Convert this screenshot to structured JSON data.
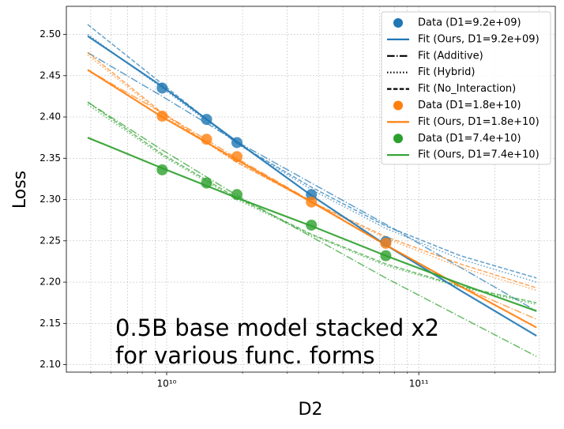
{
  "chart_data": {
    "type": "scatter_fit",
    "annotation": [
      "0.5B base model stacked x2",
      "for various func. forms"
    ],
    "x_label": "D2",
    "y_label": "Loss",
    "x_scale": "log",
    "grid": true,
    "legend_position": "upper right",
    "xlim": [
      4000000000.0,
      348000000000.0
    ],
    "ylim": [
      2.091,
      2.534
    ],
    "xticks": [
      {
        "value": 10000000000.0,
        "label": "10¹⁰"
      },
      {
        "value": 100000000000.0,
        "label": "10¹¹"
      }
    ],
    "xminor": [
      5000000000.0,
      6000000000.0,
      7000000000.0,
      8000000000.0,
      9000000000.0,
      20000000000.0,
      30000000000.0,
      40000000000.0,
      50000000000.0,
      60000000000.0,
      70000000000.0,
      80000000000.0,
      90000000000.0,
      200000000000.0,
      300000000000.0
    ],
    "yticks": [
      {
        "value": 2.1,
        "label": "2.10"
      },
      {
        "value": 2.15,
        "label": "2.15"
      },
      {
        "value": 2.2,
        "label": "2.20"
      },
      {
        "value": 2.25,
        "label": "2.25"
      },
      {
        "value": 2.3,
        "label": "2.30"
      },
      {
        "value": 2.35,
        "label": "2.35"
      },
      {
        "value": 2.4,
        "label": "2.40"
      },
      {
        "value": 2.45,
        "label": "2.45"
      },
      {
        "value": 2.5,
        "label": "2.50"
      }
    ],
    "legend": [
      {
        "name": "Data (D1=9.2e+09)",
        "color": "#1f77b4",
        "marker": "o"
      },
      {
        "name": "Fit (Ours, D1=9.2e+09)",
        "color": "#1f77b4",
        "style": "solid"
      },
      {
        "name": "Fit (Additive)",
        "color": "#000000",
        "style": "dashdot"
      },
      {
        "name": "Fit (Hybrid)",
        "color": "#000000",
        "style": "dotted"
      },
      {
        "name": "Fit (No_Interaction)",
        "color": "#000000",
        "style": "dashed"
      },
      {
        "name": "Data (D1=1.8e+10)",
        "color": "#ff7f0e",
        "marker": "o"
      },
      {
        "name": "Fit (Ours, D1=1.8e+10)",
        "color": "#ff7f0e",
        "style": "solid"
      },
      {
        "name": "Data (D1=7.4e+10)",
        "color": "#2ca02c",
        "marker": "o"
      },
      {
        "name": "Fit (Ours, D1=7.4e+10)",
        "color": "#2ca02c",
        "style": "solid"
      }
    ],
    "series": [
      {
        "color": "#1f77b4",
        "style": "dashed",
        "x": [
          4860000000.0,
          9600000000.0,
          19000000000.0,
          37500000000.0,
          74000000000.0,
          146000000000.0,
          293000000000.0
        ],
        "values": [
          2.512,
          2.44,
          2.368,
          2.315,
          2.268,
          2.232,
          2.205
        ]
      },
      {
        "color": "#1f77b4",
        "style": "dotted",
        "x": [
          4860000000.0,
          9600000000.0,
          19000000000.0,
          37500000000.0,
          74000000000.0,
          146000000000.0,
          293000000000.0
        ],
        "values": [
          2.5,
          2.435,
          2.368,
          2.312,
          2.265,
          2.228,
          2.2
        ]
      },
      {
        "color": "#1f77b4",
        "style": "dashdot",
        "x": [
          4860000000.0,
          9600000000.0,
          19000000000.0,
          37500000000.0,
          74000000000.0,
          146000000000.0,
          293000000000.0
        ],
        "values": [
          2.478,
          2.425,
          2.37,
          2.32,
          2.27,
          2.218,
          2.165
        ]
      },
      {
        "color": "#ff7f0e",
        "style": "dashed",
        "x": [
          4860000000.0,
          9600000000.0,
          19000000000.0,
          37500000000.0,
          74000000000.0,
          146000000000.0,
          293000000000.0
        ],
        "values": [
          2.478,
          2.405,
          2.345,
          2.297,
          2.255,
          2.222,
          2.193
        ]
      },
      {
        "color": "#ff7f0e",
        "style": "dotted",
        "x": [
          4860000000.0,
          9600000000.0,
          19000000000.0,
          37500000000.0,
          74000000000.0,
          146000000000.0,
          293000000000.0
        ],
        "values": [
          2.475,
          2.403,
          2.345,
          2.297,
          2.253,
          2.218,
          2.19
        ]
      },
      {
        "color": "#ff7f0e",
        "style": "dashdot",
        "x": [
          4860000000.0,
          9600000000.0,
          19000000000.0,
          37500000000.0,
          74000000000.0,
          146000000000.0,
          293000000000.0
        ],
        "values": [
          2.457,
          2.405,
          2.35,
          2.298,
          2.245,
          2.195,
          2.155
        ]
      },
      {
        "color": "#2ca02c",
        "style": "dashed",
        "x": [
          4860000000.0,
          9600000000.0,
          19000000000.0,
          37500000000.0,
          74000000000.0,
          146000000000.0,
          293000000000.0
        ],
        "values": [
          2.418,
          2.355,
          2.302,
          2.258,
          2.222,
          2.195,
          2.175
        ]
      },
      {
        "color": "#2ca02c",
        "style": "dotted",
        "x": [
          4860000000.0,
          9600000000.0,
          19000000000.0,
          37500000000.0,
          74000000000.0,
          146000000000.0,
          293000000000.0
        ],
        "values": [
          2.415,
          2.353,
          2.3,
          2.257,
          2.22,
          2.194,
          2.173
        ]
      },
      {
        "color": "#2ca02c",
        "style": "dashdot",
        "x": [
          4860000000.0,
          9600000000.0,
          19000000000.0,
          37500000000.0,
          74000000000.0,
          146000000000.0,
          293000000000.0
        ],
        "values": [
          2.418,
          2.36,
          2.305,
          2.255,
          2.205,
          2.158,
          2.11
        ]
      },
      {
        "color": "#1f77b4",
        "style": "solid",
        "x": [
          4860000000.0,
          9600000000.0,
          19000000000.0,
          37500000000.0,
          74000000000.0,
          146000000000.0,
          293000000000.0
        ],
        "values": [
          2.498,
          2.437,
          2.37,
          2.305,
          2.245,
          2.19,
          2.135
        ]
      },
      {
        "color": "#ff7f0e",
        "style": "solid",
        "x": [
          4860000000.0,
          9600000000.0,
          19000000000.0,
          37500000000.0,
          74000000000.0,
          146000000000.0,
          293000000000.0
        ],
        "values": [
          2.457,
          2.4,
          2.348,
          2.297,
          2.245,
          2.195,
          2.145
        ]
      },
      {
        "color": "#2ca02c",
        "style": "solid",
        "x": [
          4860000000.0,
          9600000000.0,
          19000000000.0,
          37500000000.0,
          74000000000.0,
          146000000000.0,
          293000000000.0
        ],
        "values": [
          2.375,
          2.338,
          2.302,
          2.268,
          2.232,
          2.198,
          2.165
        ]
      },
      {
        "color": "#1f77b4",
        "marker": "o",
        "x": [
          9600000000.0,
          14400000000.0,
          19000000000.0,
          37500000000.0,
          74000000000.0
        ],
        "values": [
          2.435,
          2.397,
          2.369,
          2.306,
          2.249
        ]
      },
      {
        "color": "#ff7f0e",
        "marker": "o",
        "x": [
          9600000000.0,
          14400000000.0,
          19000000000.0,
          37500000000.0,
          74000000000.0
        ],
        "values": [
          2.401,
          2.373,
          2.352,
          2.297,
          2.247
        ]
      },
      {
        "color": "#2ca02c",
        "marker": "o",
        "x": [
          9600000000.0,
          14400000000.0,
          19000000000.0,
          37500000000.0,
          74000000000.0
        ],
        "values": [
          2.336,
          2.32,
          2.306,
          2.269,
          2.232
        ]
      }
    ]
  }
}
